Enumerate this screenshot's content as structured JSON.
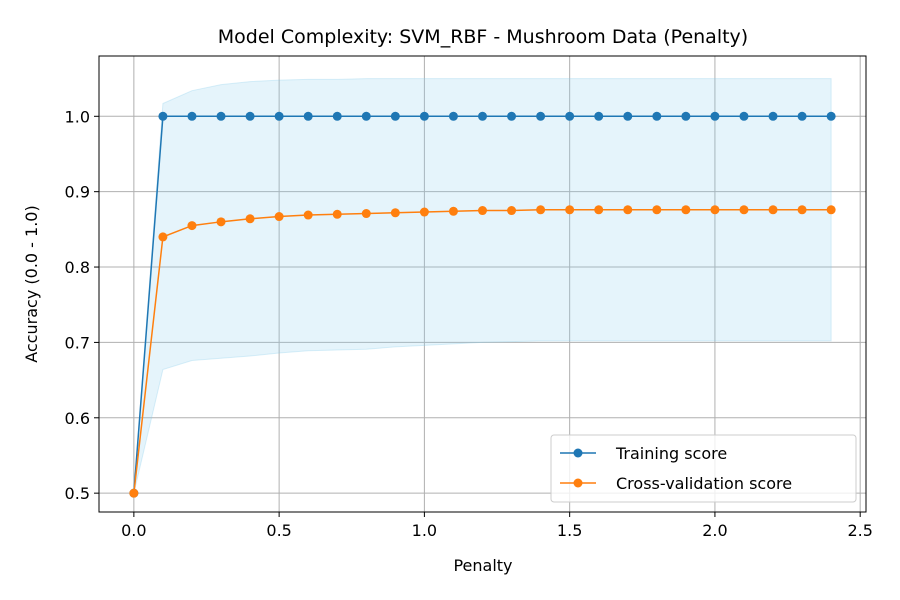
{
  "chart_data": {
    "type": "line",
    "title": "Model Complexity: SVM_RBF - Mushroom Data (Penalty)",
    "xlabel": "Penalty",
    "ylabel": "Accuracy (0.0 - 1.0)",
    "xlim": [
      -0.12,
      2.52
    ],
    "ylim": [
      0.475,
      1.08
    ],
    "xticks": [
      "0.0",
      "0.5",
      "1.0",
      "1.5",
      "2.0",
      "2.5"
    ],
    "yticks": [
      "0.5",
      "0.6",
      "0.7",
      "0.8",
      "0.9",
      "1.0"
    ],
    "grid": true,
    "legend_position": "lower-right",
    "x": [
      0.0,
      0.1,
      0.2,
      0.3,
      0.4,
      0.5,
      0.6,
      0.7,
      0.8,
      0.9,
      1.0,
      1.1,
      1.2,
      1.3,
      1.4,
      1.5,
      1.6,
      1.7,
      1.8,
      1.9,
      2.0,
      2.1,
      2.2,
      2.3,
      2.4
    ],
    "series": [
      {
        "name": "Training score",
        "color": "#1f77b4",
        "values": [
          0.5,
          1.0,
          1.0,
          1.0,
          1.0,
          1.0,
          1.0,
          1.0,
          1.0,
          1.0,
          1.0,
          1.0,
          1.0,
          1.0,
          1.0,
          1.0,
          1.0,
          1.0,
          1.0,
          1.0,
          1.0,
          1.0,
          1.0,
          1.0,
          1.0
        ]
      },
      {
        "name": "Cross-validation score",
        "color": "#ff7f0e",
        "values": [
          0.5,
          0.84,
          0.855,
          0.86,
          0.864,
          0.867,
          0.869,
          0.87,
          0.871,
          0.872,
          0.873,
          0.874,
          0.875,
          0.875,
          0.876,
          0.876,
          0.876,
          0.876,
          0.876,
          0.876,
          0.876,
          0.876,
          0.876,
          0.876,
          0.876
        ],
        "band_color": "#87ceeb",
        "band_upper": [
          0.5,
          1.017,
          1.034,
          1.042,
          1.046,
          1.048,
          1.049,
          1.049,
          1.05,
          1.05,
          1.05,
          1.05,
          1.05,
          1.05,
          1.05,
          1.05,
          1.05,
          1.05,
          1.05,
          1.05,
          1.05,
          1.05,
          1.05,
          1.05,
          1.05
        ],
        "band_lower": [
          0.5,
          0.664,
          0.676,
          0.679,
          0.682,
          0.686,
          0.689,
          0.69,
          0.691,
          0.694,
          0.696,
          0.698,
          0.7,
          0.701,
          0.702,
          0.702,
          0.702,
          0.702,
          0.702,
          0.702,
          0.702,
          0.702,
          0.702,
          0.702,
          0.702
        ]
      }
    ]
  }
}
